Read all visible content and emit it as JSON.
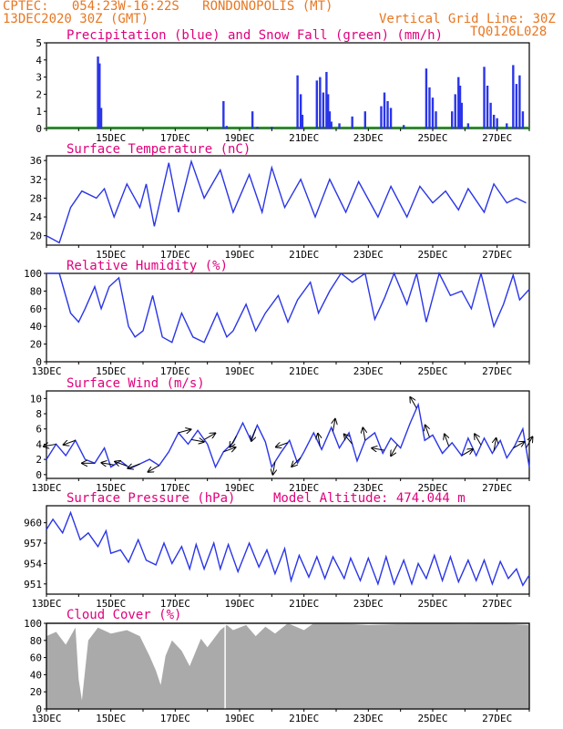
{
  "header": {
    "line1": "CPTEC:   054:23W-16:22S   RONDONOPOLIS (MT)",
    "line2": "13DEC2020 30Z (GMT)",
    "grid_note": "Vertical Grid Line: 30Z",
    "run_code": "TQ0126L028"
  },
  "colors": {
    "header": "#e87722",
    "titles": "#e0007c",
    "series": "#2a35e8",
    "snow": "#00a000",
    "cloud": "#aaaaaa"
  },
  "chart_data": [
    {
      "type": "bar",
      "title": "Precipitation (blue) and Snow Fall (green) (mm/h)",
      "x_tick_labels": [
        "15DEC",
        "17DEC",
        "19DEC",
        "21DEC",
        "23DEC",
        "25DEC",
        "27DEC"
      ],
      "x_range_days": [
        13.0,
        28.0
      ],
      "ylim": [
        0,
        5
      ],
      "y_ticks": [
        "0",
        "1",
        "2",
        "3",
        "4",
        "5"
      ],
      "precip_events": [
        [
          14.6,
          4.2
        ],
        [
          14.65,
          3.8
        ],
        [
          14.7,
          1.2
        ],
        [
          18.5,
          1.6
        ],
        [
          18.6,
          0.15
        ],
        [
          19.4,
          1.0
        ],
        [
          19.55,
          0.1
        ],
        [
          20.0,
          0.1
        ],
        [
          20.8,
          3.1
        ],
        [
          20.9,
          2.0
        ],
        [
          20.95,
          0.8
        ],
        [
          21.4,
          2.8
        ],
        [
          21.5,
          3.0
        ],
        [
          21.6,
          2.1
        ],
        [
          21.7,
          3.3
        ],
        [
          21.75,
          2.0
        ],
        [
          21.8,
          1.0
        ],
        [
          21.85,
          0.4
        ],
        [
          22.1,
          0.3
        ],
        [
          22.5,
          0.7
        ],
        [
          22.9,
          1.0
        ],
        [
          23.4,
          1.3
        ],
        [
          23.5,
          2.1
        ],
        [
          23.6,
          1.6
        ],
        [
          23.7,
          1.2
        ],
        [
          24.1,
          0.2
        ],
        [
          24.8,
          3.5
        ],
        [
          24.9,
          2.4
        ],
        [
          25.0,
          1.8
        ],
        [
          25.1,
          1.0
        ],
        [
          25.6,
          1.0
        ],
        [
          25.7,
          2.0
        ],
        [
          25.8,
          3.0
        ],
        [
          25.85,
          2.5
        ],
        [
          25.9,
          1.5
        ],
        [
          26.1,
          0.3
        ],
        [
          26.6,
          3.6
        ],
        [
          26.7,
          2.5
        ],
        [
          26.8,
          1.5
        ],
        [
          26.9,
          0.8
        ],
        [
          27.0,
          0.6
        ],
        [
          27.3,
          0.3
        ],
        [
          27.5,
          3.7
        ],
        [
          27.6,
          2.6
        ],
        [
          27.7,
          3.1
        ],
        [
          27.8,
          1.0
        ]
      ],
      "snow": 0
    },
    {
      "type": "line",
      "title": "Surface Temperature (nC)",
      "x_tick_labels": [
        "15DEC",
        "17DEC",
        "19DEC",
        "21DEC",
        "23DEC",
        "25DEC",
        "27DEC"
      ],
      "ylim": [
        18,
        37
      ],
      "y_ticks": [
        "20",
        "24",
        "28",
        "32",
        "36"
      ],
      "maxima": [
        [
          13.0,
          20
        ],
        [
          13.4,
          18.5
        ],
        [
          13.75,
          26
        ],
        [
          14.1,
          29.5
        ],
        [
          14.55,
          28
        ],
        [
          14.8,
          30
        ],
        [
          15.1,
          24
        ],
        [
          15.5,
          31
        ],
        [
          15.9,
          26
        ],
        [
          16.1,
          31
        ],
        [
          16.35,
          22
        ],
        [
          16.8,
          35.5
        ],
        [
          17.1,
          25
        ],
        [
          17.5,
          35.8
        ],
        [
          17.9,
          28
        ],
        [
          18.4,
          34
        ],
        [
          18.8,
          25
        ],
        [
          19.3,
          33
        ],
        [
          19.7,
          25
        ],
        [
          20.0,
          34.5
        ],
        [
          20.4,
          26
        ],
        [
          20.9,
          32
        ],
        [
          21.35,
          24
        ],
        [
          21.8,
          32
        ],
        [
          22.3,
          25
        ],
        [
          22.7,
          31.5
        ],
        [
          23.3,
          24
        ],
        [
          23.7,
          30.5
        ],
        [
          24.2,
          24
        ],
        [
          24.6,
          30.5
        ],
        [
          25.0,
          27
        ],
        [
          25.4,
          29.5
        ],
        [
          25.8,
          25.5
        ],
        [
          26.1,
          30
        ],
        [
          26.6,
          25
        ],
        [
          26.9,
          31
        ],
        [
          27.3,
          27
        ],
        [
          27.6,
          28
        ],
        [
          27.9,
          27
        ]
      ]
    },
    {
      "type": "line",
      "title": "Relative Humidity (%)",
      "x_tick_labels": [
        "13DEC",
        "15DEC",
        "17DEC",
        "19DEC",
        "21DEC",
        "23DEC",
        "25DEC",
        "27DEC"
      ],
      "ylim": [
        0,
        100
      ],
      "y_ticks": [
        "0",
        "20",
        "40",
        "60",
        "80",
        "100"
      ],
      "points": [
        [
          13.0,
          100
        ],
        [
          13.4,
          100
        ],
        [
          13.75,
          55
        ],
        [
          14.0,
          45
        ],
        [
          14.2,
          60
        ],
        [
          14.5,
          85
        ],
        [
          14.7,
          60
        ],
        [
          14.95,
          85
        ],
        [
          15.25,
          95
        ],
        [
          15.55,
          40
        ],
        [
          15.75,
          28
        ],
        [
          16.0,
          35
        ],
        [
          16.3,
          75
        ],
        [
          16.6,
          28
        ],
        [
          16.9,
          22
        ],
        [
          17.2,
          55
        ],
        [
          17.55,
          28
        ],
        [
          17.9,
          22
        ],
        [
          18.3,
          55
        ],
        [
          18.6,
          28
        ],
        [
          18.8,
          35
        ],
        [
          19.2,
          65
        ],
        [
          19.5,
          35
        ],
        [
          19.8,
          55
        ],
        [
          20.2,
          75
        ],
        [
          20.5,
          45
        ],
        [
          20.8,
          70
        ],
        [
          21.2,
          90
        ],
        [
          21.45,
          55
        ],
        [
          21.8,
          80
        ],
        [
          22.15,
          100
        ],
        [
          22.5,
          90
        ],
        [
          22.9,
          100
        ],
        [
          23.2,
          48
        ],
        [
          23.5,
          72
        ],
        [
          23.8,
          100
        ],
        [
          24.2,
          65
        ],
        [
          24.5,
          100
        ],
        [
          24.8,
          45
        ],
        [
          25.2,
          100
        ],
        [
          25.55,
          75
        ],
        [
          25.9,
          80
        ],
        [
          26.2,
          60
        ],
        [
          26.5,
          100
        ],
        [
          26.9,
          40
        ],
        [
          27.2,
          65
        ],
        [
          27.5,
          98
        ],
        [
          27.7,
          70
        ],
        [
          28.0,
          82
        ]
      ]
    },
    {
      "type": "line",
      "title": "Surface Wind (m/s)",
      "x_tick_labels": [
        "13DEC",
        "15DEC",
        "17DEC",
        "19DEC",
        "21DEC",
        "23DEC",
        "25DEC",
        "27DEC"
      ],
      "ylim": [
        -0.5,
        11
      ],
      "y_ticks": [
        "0",
        "2",
        "4",
        "6",
        "8",
        "10"
      ],
      "points": [
        [
          13.0,
          2
        ],
        [
          13.3,
          4
        ],
        [
          13.6,
          2.5
        ],
        [
          13.9,
          4.5
        ],
        [
          14.2,
          2
        ],
        [
          14.5,
          1.5
        ],
        [
          14.8,
          3.5
        ],
        [
          15.0,
          1
        ],
        [
          15.3,
          1.8
        ],
        [
          15.6,
          0.8
        ],
        [
          15.9,
          1.4
        ],
        [
          16.2,
          2
        ],
        [
          16.5,
          1.2
        ],
        [
          16.8,
          3
        ],
        [
          17.1,
          5.5
        ],
        [
          17.4,
          4
        ],
        [
          17.7,
          5.8
        ],
        [
          18.0,
          4
        ],
        [
          18.25,
          1
        ],
        [
          18.5,
          3
        ],
        [
          18.8,
          4.2
        ],
        [
          19.1,
          6.8
        ],
        [
          19.35,
          4.5
        ],
        [
          19.55,
          6.5
        ],
        [
          19.8,
          4.3
        ],
        [
          20.0,
          1
        ],
        [
          20.3,
          3
        ],
        [
          20.55,
          4.5
        ],
        [
          20.8,
          1.5
        ],
        [
          21.0,
          3
        ],
        [
          21.3,
          5.5
        ],
        [
          21.55,
          3.3
        ],
        [
          21.85,
          6.2
        ],
        [
          22.1,
          3.5
        ],
        [
          22.4,
          5.5
        ],
        [
          22.65,
          1.8
        ],
        [
          22.9,
          4.5
        ],
        [
          23.2,
          5.5
        ],
        [
          23.45,
          2.8
        ],
        [
          23.7,
          4.8
        ],
        [
          24.0,
          3.5
        ],
        [
          24.3,
          6.8
        ],
        [
          24.55,
          9.2
        ],
        [
          24.75,
          4.5
        ],
        [
          25.0,
          5.2
        ],
        [
          25.3,
          2.8
        ],
        [
          25.6,
          4.2
        ],
        [
          25.9,
          2.5
        ],
        [
          26.1,
          4.8
        ],
        [
          26.35,
          2.5
        ],
        [
          26.6,
          4.8
        ],
        [
          26.85,
          2.8
        ],
        [
          27.1,
          4.5
        ],
        [
          27.3,
          2.2
        ],
        [
          27.55,
          3.8
        ],
        [
          27.8,
          6
        ],
        [
          28.0,
          1
        ]
      ],
      "barb_days": [
        13.3,
        13.9,
        14.5,
        15.1,
        15.5,
        15.9,
        16.5,
        17.1,
        17.5,
        17.9,
        18.5,
        18.9,
        19.5,
        20.1,
        20.5,
        20.9,
        21.5,
        21.9,
        22.5,
        22.9,
        23.5,
        23.9,
        24.5,
        24.9,
        25.5,
        25.9,
        26.5,
        26.9,
        27.5,
        27.9
      ]
    },
    {
      "type": "line",
      "title": "Surface Pressure (hPa)",
      "annotation": "Model Altitude: 474.044 m",
      "x_tick_labels": [
        "13DEC",
        "15DEC",
        "17DEC",
        "19DEC",
        "21DEC",
        "23DEC",
        "25DEC",
        "27DEC"
      ],
      "ylim": [
        949.5,
        962.5
      ],
      "y_ticks": [
        "951",
        "954",
        "957",
        "960"
      ],
      "points": [
        [
          13.0,
          959
        ],
        [
          13.2,
          960.5
        ],
        [
          13.5,
          958.5
        ],
        [
          13.75,
          961.5
        ],
        [
          14.05,
          957.5
        ],
        [
          14.3,
          958.5
        ],
        [
          14.6,
          956.5
        ],
        [
          14.85,
          958.8
        ],
        [
          15.0,
          955.5
        ],
        [
          15.3,
          956
        ],
        [
          15.55,
          954.2
        ],
        [
          15.85,
          957.5
        ],
        [
          16.1,
          954.5
        ],
        [
          16.4,
          953.8
        ],
        [
          16.65,
          957
        ],
        [
          16.9,
          954
        ],
        [
          17.2,
          956.5
        ],
        [
          17.45,
          953.2
        ],
        [
          17.65,
          956.8
        ],
        [
          17.9,
          953.2
        ],
        [
          18.2,
          957
        ],
        [
          18.4,
          953.2
        ],
        [
          18.65,
          956.8
        ],
        [
          18.95,
          952.8
        ],
        [
          19.3,
          957
        ],
        [
          19.6,
          953.5
        ],
        [
          19.85,
          956
        ],
        [
          20.1,
          952.5
        ],
        [
          20.4,
          956.2
        ],
        [
          20.6,
          951.5
        ],
        [
          20.85,
          955.2
        ],
        [
          21.15,
          952
        ],
        [
          21.4,
          955
        ],
        [
          21.65,
          951.8
        ],
        [
          21.9,
          955
        ],
        [
          22.25,
          951.8
        ],
        [
          22.45,
          954.8
        ],
        [
          22.75,
          951.5
        ],
        [
          23.0,
          954.8
        ],
        [
          23.3,
          951
        ],
        [
          23.55,
          955
        ],
        [
          23.8,
          951
        ],
        [
          24.1,
          954.5
        ],
        [
          24.35,
          951
        ],
        [
          24.55,
          954
        ],
        [
          24.8,
          951.8
        ],
        [
          25.05,
          955.2
        ],
        [
          25.3,
          951.5
        ],
        [
          25.55,
          955
        ],
        [
          25.8,
          951.3
        ],
        [
          26.1,
          954.5
        ],
        [
          26.35,
          951.5
        ],
        [
          26.6,
          954.5
        ],
        [
          26.85,
          951
        ],
        [
          27.1,
          954.3
        ],
        [
          27.35,
          951.8
        ],
        [
          27.6,
          953.2
        ],
        [
          27.8,
          950.8
        ],
        [
          28.0,
          952.3
        ]
      ]
    },
    {
      "type": "area",
      "title": "Cloud Cover (%)",
      "x_tick_labels": [
        "13DEC",
        "15DEC",
        "17DEC",
        "19DEC",
        "21DEC",
        "23DEC",
        "25DEC",
        "27DEC"
      ],
      "ylim": [
        0,
        100
      ],
      "y_ticks": [
        "0",
        "20",
        "40",
        "60",
        "80",
        "100"
      ],
      "points": [
        [
          13.0,
          85
        ],
        [
          13.3,
          90
        ],
        [
          13.6,
          75
        ],
        [
          13.9,
          95
        ],
        [
          14.0,
          35
        ],
        [
          14.1,
          10
        ],
        [
          14.3,
          80
        ],
        [
          14.6,
          95
        ],
        [
          15.0,
          88
        ],
        [
          15.5,
          92
        ],
        [
          15.9,
          85
        ],
        [
          16.2,
          62
        ],
        [
          16.4,
          45
        ],
        [
          16.55,
          28
        ],
        [
          16.7,
          62
        ],
        [
          16.9,
          80
        ],
        [
          17.2,
          68
        ],
        [
          17.45,
          50
        ],
        [
          17.8,
          82
        ],
        [
          18.0,
          72
        ],
        [
          18.4,
          92
        ],
        [
          18.6,
          98
        ],
        [
          18.8,
          92
        ],
        [
          19.2,
          98
        ],
        [
          19.5,
          85
        ],
        [
          19.8,
          96
        ],
        [
          20.1,
          88
        ],
        [
          20.5,
          100
        ],
        [
          21.0,
          92
        ],
        [
          21.3,
          100
        ],
        [
          22.0,
          100
        ],
        [
          23.0,
          98
        ],
        [
          24.0,
          99
        ],
        [
          25.0,
          100
        ],
        [
          26.0,
          99
        ],
        [
          27.0,
          100
        ],
        [
          28.0,
          98
        ]
      ]
    }
  ]
}
